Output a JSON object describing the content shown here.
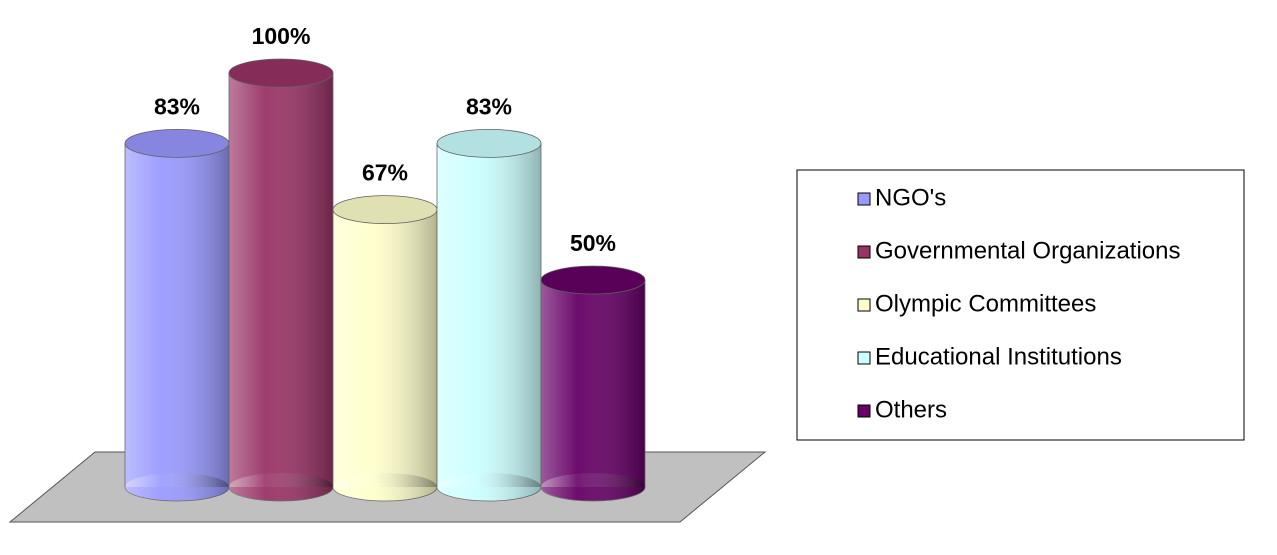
{
  "chart_data": {
    "type": "bar",
    "series": [
      {
        "name": "NGO's",
        "color": "#9999ff",
        "values": [
          83
        ],
        "value_labels": [
          "83%"
        ]
      },
      {
        "name": "Governmental Organizations",
        "color": "#993366",
        "values": [
          100
        ],
        "value_labels": [
          "100%"
        ]
      },
      {
        "name": "Olympic Committees",
        "color": "#ffffcc",
        "values": [
          67
        ],
        "value_labels": [
          "67%"
        ]
      },
      {
        "name": "Educational Institutions",
        "color": "#ccffff",
        "values": [
          83
        ],
        "value_labels": [
          "83%"
        ]
      },
      {
        "name": "Others",
        "color": "#660066",
        "values": [
          50
        ],
        "value_labels": [
          "50%"
        ]
      }
    ],
    "legend": "right"
  }
}
